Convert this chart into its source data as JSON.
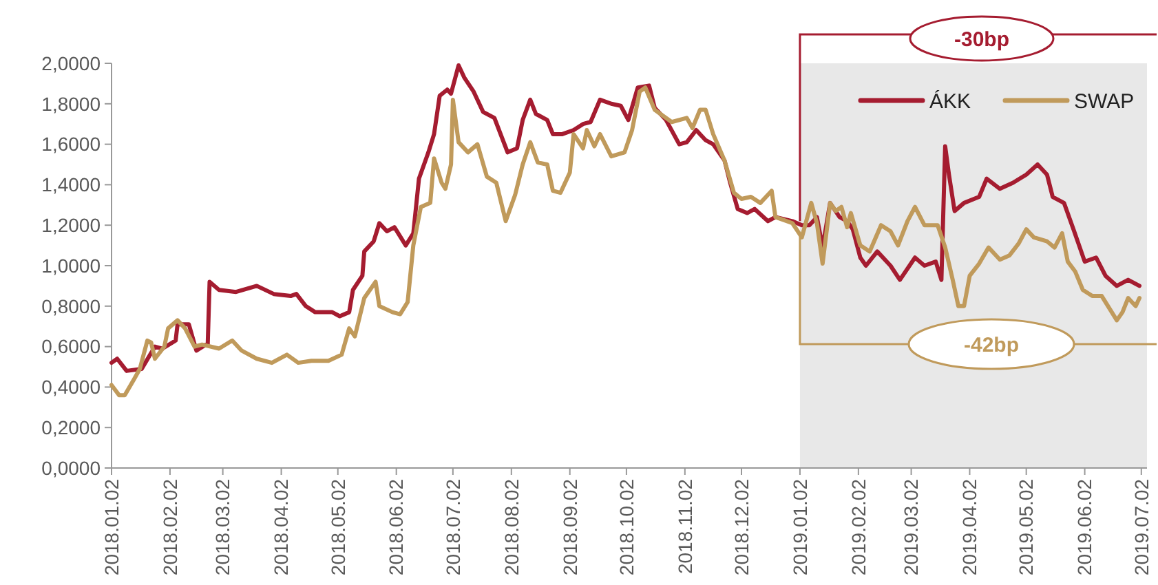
{
  "chart_data": {
    "type": "line",
    "legend": "top right",
    "grid": false,
    "marker": "none",
    "line_style": "solid",
    "xlim": [
      "2018-01-02",
      "2019-07-05"
    ],
    "xticks": [
      {
        "value": "2018-01-02",
        "label": "2018.01.02"
      },
      {
        "value": "2018-02-02",
        "label": "2018.02.02"
      },
      {
        "value": "2018-03-02",
        "label": "2018.03.02"
      },
      {
        "value": "2018-04-02",
        "label": "2018.04.02"
      },
      {
        "value": "2018-05-02",
        "label": "2018.05.02"
      },
      {
        "value": "2018-06-02",
        "label": "2018.06.02"
      },
      {
        "value": "2018-07-02",
        "label": "2018.07.02"
      },
      {
        "value": "2018-08-02",
        "label": "2018.08.02"
      },
      {
        "value": "2018-09-02",
        "label": "2018.09.02"
      },
      {
        "value": "2018-10-02",
        "label": "2018.10.02"
      },
      {
        "value": "2018-11-02",
        "label": "2018.11.02"
      },
      {
        "value": "2018-12-02",
        "label": "2018.12.02"
      },
      {
        "value": "2019-01-02",
        "label": "2019.01.02"
      },
      {
        "value": "2019-02-02",
        "label": "2019.02.02"
      },
      {
        "value": "2019-03-02",
        "label": "2019.03.02"
      },
      {
        "value": "2019-04-02",
        "label": "2019.04.02"
      },
      {
        "value": "2019-05-02",
        "label": "2019.05.02"
      },
      {
        "value": "2019-06-02",
        "label": "2019.06.02"
      },
      {
        "value": "2019-07-02",
        "label": "2019.07.02"
      }
    ],
    "ylim": [
      0,
      2
    ],
    "yticks": [
      {
        "value": 0,
        "label": "0,0000"
      },
      {
        "value": 0.2,
        "label": "0,2000"
      },
      {
        "value": 0.4,
        "label": "0,4000"
      },
      {
        "value": 0.6,
        "label": "0,6000"
      },
      {
        "value": 0.8,
        "label": "0,8000"
      },
      {
        "value": 1,
        "label": "1,0000"
      },
      {
        "value": 1.2,
        "label": "1,2000"
      },
      {
        "value": 1.4,
        "label": "1,4000"
      },
      {
        "value": 1.6,
        "label": "1,6000"
      },
      {
        "value": 1.8,
        "label": "1,8000"
      },
      {
        "value": 2,
        "label": "2,0000"
      }
    ],
    "bands": [
      {
        "axis": "x",
        "from": "2019-01-02",
        "to": "2019-07-05",
        "color": "#e8e8e8"
      }
    ],
    "annotations": [
      "-30bp",
      "-42bp"
    ],
    "series": [
      {
        "name": "ÁKK",
        "color": "#a51c30",
        "x": [
          "2018-01-02",
          "2018-01-05",
          "2018-01-10",
          "2018-01-18",
          "2018-01-25",
          "2018-01-29",
          "2018-02-05",
          "2018-02-06",
          "2018-02-12",
          "2018-02-16",
          "2018-02-21",
          "2018-02-22",
          "2018-02-23",
          "2018-02-28",
          "2018-03-09",
          "2018-03-20",
          "2018-03-29",
          "2018-04-07",
          "2018-04-10",
          "2018-04-15",
          "2018-04-20",
          "2018-04-29",
          "2018-05-03",
          "2018-05-08",
          "2018-05-10",
          "2018-05-15",
          "2018-05-16",
          "2018-05-21",
          "2018-05-24",
          "2018-05-28",
          "2018-06-01",
          "2018-06-07",
          "2018-06-11",
          "2018-06-14",
          "2018-06-19",
          "2018-06-22",
          "2018-06-25",
          "2018-06-29",
          "2018-07-01",
          "2018-07-05",
          "2018-07-08",
          "2018-07-13",
          "2018-07-18",
          "2018-07-24",
          "2018-07-31",
          "2018-08-05",
          "2018-08-08",
          "2018-08-12",
          "2018-08-15",
          "2018-08-21",
          "2018-08-24",
          "2018-08-29",
          "2018-09-04",
          "2018-09-09",
          "2018-09-13",
          "2018-09-18",
          "2018-09-24",
          "2018-09-29",
          "2018-10-03",
          "2018-10-08",
          "2018-10-14",
          "2018-10-17",
          "2018-10-23",
          "2018-10-30",
          "2018-11-03",
          "2018-11-08",
          "2018-11-13",
          "2018-11-17",
          "2018-11-23",
          "2018-11-26",
          "2018-11-30",
          "2018-12-05",
          "2018-12-09",
          "2018-12-16",
          "2018-12-20",
          "2018-12-29",
          "2019-01-03",
          "2019-01-07",
          "2019-01-11",
          "2019-01-14",
          "2019-01-18",
          "2019-01-23",
          "2019-01-27",
          "2019-01-30",
          "2019-02-03",
          "2019-02-06",
          "2019-02-12",
          "2019-02-19",
          "2019-02-24",
          "2019-03-04",
          "2019-03-09",
          "2019-03-15",
          "2019-03-18",
          "2019-03-20",
          "2019-03-22",
          "2019-03-25",
          "2019-03-30",
          "2019-04-07",
          "2019-04-11",
          "2019-04-18",
          "2019-04-25",
          "2019-05-02",
          "2019-05-08",
          "2019-05-13",
          "2019-05-16",
          "2019-05-22",
          "2019-05-27",
          "2019-06-02",
          "2019-06-08",
          "2019-06-13",
          "2019-06-19",
          "2019-06-25",
          "2019-07-01"
        ],
        "values": [
          0.52,
          0.54,
          0.48,
          0.49,
          0.6,
          0.59,
          0.63,
          0.71,
          0.71,
          0.58,
          0.61,
          0.61,
          0.92,
          0.88,
          0.87,
          0.9,
          0.86,
          0.85,
          0.86,
          0.8,
          0.77,
          0.77,
          0.75,
          0.77,
          0.88,
          0.95,
          1.07,
          1.12,
          1.21,
          1.17,
          1.19,
          1.1,
          1.16,
          1.43,
          1.56,
          1.65,
          1.84,
          1.87,
          1.85,
          1.99,
          1.93,
          1.86,
          1.76,
          1.73,
          1.56,
          1.58,
          1.72,
          1.82,
          1.75,
          1.72,
          1.65,
          1.65,
          1.67,
          1.7,
          1.71,
          1.82,
          1.8,
          1.79,
          1.72,
          1.88,
          1.89,
          1.78,
          1.72,
          1.6,
          1.61,
          1.67,
          1.62,
          1.6,
          1.52,
          1.41,
          1.28,
          1.26,
          1.28,
          1.22,
          1.24,
          1.22,
          1.2,
          1.2,
          1.24,
          1.09,
          1.31,
          1.24,
          1.22,
          1.18,
          1.04,
          1.0,
          1.07,
          1.0,
          0.93,
          1.04,
          1.0,
          1.02,
          0.93,
          1.59,
          1.45,
          1.27,
          1.31,
          1.34,
          1.43,
          1.38,
          1.41,
          1.45,
          1.5,
          1.45,
          1.34,
          1.31,
          1.18,
          1.02,
          1.04,
          0.95,
          0.9,
          0.93,
          0.9
        ]
      },
      {
        "name": "SWAP",
        "color": "#c09a5b",
        "x": [
          "2018-01-02",
          "2018-01-06",
          "2018-01-09",
          "2018-01-14",
          "2018-01-17",
          "2018-01-21",
          "2018-01-23",
          "2018-01-25",
          "2018-01-30",
          "2018-02-01",
          "2018-02-06",
          "2018-02-10",
          "2018-02-15",
          "2018-02-19",
          "2018-02-28",
          "2018-03-07",
          "2018-03-12",
          "2018-03-20",
          "2018-03-28",
          "2018-04-05",
          "2018-04-11",
          "2018-04-18",
          "2018-04-27",
          "2018-05-04",
          "2018-05-08",
          "2018-05-11",
          "2018-05-16",
          "2018-05-22",
          "2018-05-24",
          "2018-05-31",
          "2018-06-04",
          "2018-06-08",
          "2018-06-11",
          "2018-06-15",
          "2018-06-20",
          "2018-06-22",
          "2018-06-26",
          "2018-06-28",
          "2018-07-01",
          "2018-07-02",
          "2018-07-05",
          "2018-07-10",
          "2018-07-15",
          "2018-07-20",
          "2018-07-25",
          "2018-07-30",
          "2018-08-04",
          "2018-08-08",
          "2018-08-12",
          "2018-08-16",
          "2018-08-21",
          "2018-08-24",
          "2018-08-28",
          "2018-09-02",
          "2018-09-04",
          "2018-09-09",
          "2018-09-11",
          "2018-09-15",
          "2018-09-18",
          "2018-09-24",
          "2018-10-01",
          "2018-10-05",
          "2018-10-09",
          "2018-10-12",
          "2018-10-17",
          "2018-10-26",
          "2018-11-03",
          "2018-11-06",
          "2018-11-10",
          "2018-11-13",
          "2018-11-17",
          "2018-11-23",
          "2018-11-28",
          "2018-12-02",
          "2018-12-07",
          "2018-12-12",
          "2018-12-18",
          "2018-12-20",
          "2018-12-29",
          "2019-01-03",
          "2019-01-08",
          "2019-01-11",
          "2019-01-14",
          "2019-01-18",
          "2019-01-21",
          "2019-01-24",
          "2019-01-27",
          "2019-01-29",
          "2019-02-03",
          "2019-02-08",
          "2019-02-14",
          "2019-02-19",
          "2019-02-23",
          "2019-02-28",
          "2019-03-04",
          "2019-03-09",
          "2019-03-16",
          "2019-03-20",
          "2019-03-24",
          "2019-03-27",
          "2019-03-30",
          "2019-04-02",
          "2019-04-07",
          "2019-04-12",
          "2019-04-18",
          "2019-04-23",
          "2019-04-28",
          "2019-05-02",
          "2019-05-06",
          "2019-05-13",
          "2019-05-17",
          "2019-05-21",
          "2019-05-24",
          "2019-05-28",
          "2019-06-01",
          "2019-06-06",
          "2019-06-11",
          "2019-06-19",
          "2019-06-22",
          "2019-06-25",
          "2019-06-29",
          "2019-07-01"
        ],
        "values": [
          0.41,
          0.36,
          0.36,
          0.44,
          0.49,
          0.63,
          0.62,
          0.54,
          0.6,
          0.69,
          0.73,
          0.69,
          0.6,
          0.61,
          0.59,
          0.63,
          0.58,
          0.54,
          0.52,
          0.56,
          0.52,
          0.53,
          0.53,
          0.56,
          0.69,
          0.65,
          0.84,
          0.92,
          0.8,
          0.77,
          0.76,
          0.82,
          1.1,
          1.29,
          1.31,
          1.53,
          1.41,
          1.38,
          1.5,
          1.82,
          1.61,
          1.56,
          1.6,
          1.44,
          1.41,
          1.22,
          1.35,
          1.5,
          1.61,
          1.51,
          1.5,
          1.37,
          1.36,
          1.46,
          1.65,
          1.58,
          1.67,
          1.59,
          1.65,
          1.54,
          1.56,
          1.67,
          1.86,
          1.88,
          1.77,
          1.71,
          1.73,
          1.68,
          1.77,
          1.77,
          1.65,
          1.52,
          1.36,
          1.33,
          1.34,
          1.31,
          1.37,
          1.24,
          1.21,
          1.14,
          1.31,
          1.21,
          1.01,
          1.31,
          1.27,
          1.29,
          1.19,
          1.26,
          1.1,
          1.07,
          1.2,
          1.17,
          1.1,
          1.22,
          1.29,
          1.2,
          1.2,
          1.09,
          0.93,
          0.8,
          0.8,
          0.95,
          1.01,
          1.09,
          1.03,
          1.05,
          1.11,
          1.18,
          1.14,
          1.12,
          1.09,
          1.16,
          1.02,
          0.97,
          0.88,
          0.85,
          0.85,
          0.73,
          0.77,
          0.84,
          0.8,
          0.84
        ]
      }
    ]
  }
}
